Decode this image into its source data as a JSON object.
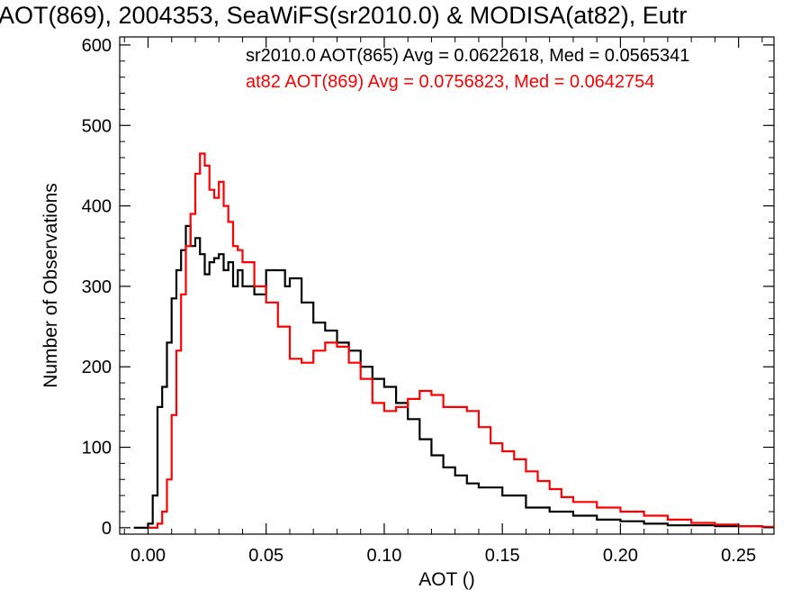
{
  "chart_data": {
    "type": "line",
    "step": true,
    "title": "AOT(869), 2004353, SeaWiFS(sr2010.0) & MODISA(at82), Eutr",
    "xlabel": "AOT ()",
    "ylabel": "Number of Observations",
    "xlim": [
      -0.012,
      0.265
    ],
    "ylim": [
      -8,
      610
    ],
    "grid": false,
    "legend_position": "top-right",
    "x_ticks": [
      0.0,
      0.05,
      0.1,
      0.15,
      0.2,
      0.25
    ],
    "x_tick_labels": [
      "0.00",
      "0.05",
      "0.10",
      "0.15",
      "0.20",
      "0.25"
    ],
    "y_ticks": [
      0,
      100,
      200,
      300,
      400,
      500,
      600
    ],
    "y_tick_labels": [
      "0",
      "100",
      "200",
      "300",
      "400",
      "500",
      "600"
    ],
    "series": [
      {
        "legend": "sr2010.0 AOT(865) Avg = 0.0622618, Med = 0.0565341",
        "color": "#000000",
        "x": [
          -0.006,
          0.0,
          0.002,
          0.004,
          0.006,
          0.008,
          0.01,
          0.012,
          0.014,
          0.016,
          0.018,
          0.02,
          0.022,
          0.024,
          0.026,
          0.028,
          0.03,
          0.032,
          0.034,
          0.036,
          0.038,
          0.04,
          0.045,
          0.05,
          0.055,
          0.058,
          0.06,
          0.065,
          0.07,
          0.075,
          0.08,
          0.085,
          0.09,
          0.095,
          0.1,
          0.105,
          0.11,
          0.115,
          0.12,
          0.125,
          0.13,
          0.135,
          0.14,
          0.15,
          0.16,
          0.17,
          0.18,
          0.19,
          0.2,
          0.21,
          0.22,
          0.24,
          0.26
        ],
        "values": [
          0,
          5,
          40,
          150,
          175,
          230,
          285,
          320,
          345,
          375,
          350,
          360,
          340,
          315,
          330,
          335,
          340,
          320,
          330,
          300,
          320,
          300,
          290,
          320,
          320,
          300,
          310,
          280,
          255,
          245,
          230,
          220,
          200,
          185,
          175,
          155,
          135,
          110,
          90,
          75,
          65,
          55,
          50,
          40,
          25,
          20,
          15,
          10,
          8,
          5,
          3,
          2,
          1
        ]
      },
      {
        "legend": "at82 AOT(869) Avg = 0.0756823, Med = 0.0642754",
        "color": "#ff0000",
        "x": [
          0.0,
          0.004,
          0.006,
          0.008,
          0.01,
          0.012,
          0.014,
          0.016,
          0.018,
          0.02,
          0.022,
          0.024,
          0.026,
          0.028,
          0.03,
          0.032,
          0.034,
          0.036,
          0.038,
          0.04,
          0.045,
          0.05,
          0.055,
          0.06,
          0.065,
          0.07,
          0.075,
          0.08,
          0.085,
          0.09,
          0.095,
          0.1,
          0.105,
          0.11,
          0.115,
          0.12,
          0.125,
          0.13,
          0.135,
          0.14,
          0.145,
          0.15,
          0.155,
          0.16,
          0.165,
          0.17,
          0.175,
          0.18,
          0.19,
          0.2,
          0.21,
          0.22,
          0.23,
          0.24,
          0.25,
          0.26
        ],
        "values": [
          0,
          5,
          20,
          60,
          140,
          220,
          290,
          350,
          390,
          440,
          465,
          450,
          420,
          410,
          430,
          400,
          380,
          350,
          345,
          330,
          300,
          280,
          250,
          210,
          205,
          220,
          230,
          225,
          205,
          185,
          155,
          145,
          150,
          160,
          170,
          165,
          150,
          150,
          145,
          125,
          105,
          95,
          85,
          70,
          58,
          48,
          38,
          32,
          25,
          20,
          15,
          10,
          6,
          4,
          2,
          1
        ]
      }
    ]
  }
}
